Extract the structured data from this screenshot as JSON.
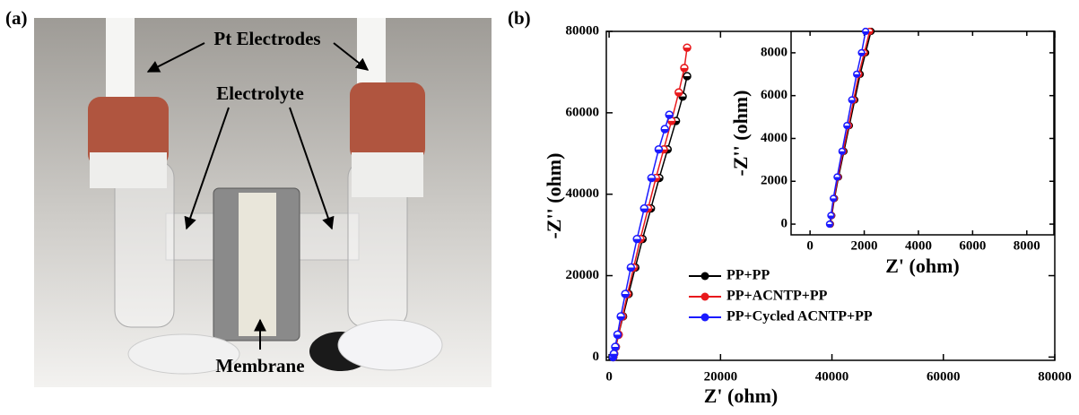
{
  "panel_labels": [
    "(a)",
    "(b)"
  ],
  "photo": {
    "annotations": [
      "Pt Electrodes",
      "Electrolyte",
      "Membrane"
    ]
  },
  "chart_data": [
    {
      "type": "scatter-line",
      "xlabel": "Z' (ohm)",
      "ylabel": "-Z'' (ohm)",
      "xlim": [
        -500,
        80000
      ],
      "ylim": [
        -800,
        80000
      ],
      "xticks": [
        0,
        20000,
        40000,
        60000,
        80000
      ],
      "yticks": [
        0,
        20000,
        40000,
        60000,
        80000
      ],
      "series": [
        {
          "name": "PP+PP",
          "color": "#000000",
          "x": [
            750,
            900,
            1200,
            1700,
            2500,
            3500,
            4700,
            6000,
            7500,
            9000,
            10500,
            12000,
            13200,
            14000
          ],
          "values": [
            0,
            800,
            2500,
            5500,
            10000,
            15500,
            22000,
            29000,
            36500,
            44000,
            51000,
            58000,
            64000,
            69000
          ]
        },
        {
          "name": "PP+ACNTP+PP",
          "color": "#e8191c",
          "x": [
            750,
            900,
            1200,
            1700,
            2400,
            3300,
            4400,
            5600,
            7000,
            8400,
            9800,
            11200,
            12500,
            13500,
            14000
          ],
          "values": [
            0,
            800,
            2500,
            5500,
            10000,
            15500,
            22000,
            29000,
            36500,
            44000,
            51000,
            58000,
            65000,
            71000,
            76000
          ]
        },
        {
          "name": "PP+Cycled ACNTP+PP",
          "color": "#1a1aff",
          "x": [
            700,
            850,
            1100,
            1500,
            2100,
            2900,
            3900,
            5000,
            6300,
            7600,
            8900,
            10000,
            10800
          ],
          "values": [
            0,
            800,
            2500,
            5500,
            10000,
            15500,
            22000,
            29000,
            36500,
            44000,
            51000,
            56000,
            59500
          ]
        }
      ]
    },
    {
      "type": "scatter-line",
      "xlabel": "Z' (ohm)",
      "ylabel": "-Z'' (ohm)",
      "xlim": [
        -700,
        9000
      ],
      "ylim": [
        -500,
        9000
      ],
      "xticks": [
        0,
        2000,
        4000,
        6000,
        8000
      ],
      "yticks": [
        0,
        2000,
        4000,
        6000,
        8000
      ],
      "series": [
        {
          "color": "#000000",
          "x": [
            750,
            800,
            900,
            1050,
            1250,
            1450,
            1650,
            1850,
            2050,
            2250
          ],
          "values": [
            0,
            400,
            1200,
            2200,
            3400,
            4600,
            5800,
            7000,
            8000,
            9000
          ]
        },
        {
          "color": "#e8191c",
          "x": [
            740,
            790,
            885,
            1030,
            1220,
            1420,
            1610,
            1800,
            2000,
            2200
          ],
          "values": [
            0,
            400,
            1200,
            2200,
            3400,
            4600,
            5800,
            7000,
            8000,
            9000
          ]
        },
        {
          "color": "#1a1aff",
          "x": [
            720,
            770,
            860,
            1000,
            1180,
            1360,
            1540,
            1720,
            1900,
            2050
          ],
          "values": [
            0,
            400,
            1200,
            2200,
            3400,
            4600,
            5800,
            7000,
            8000,
            9000
          ]
        }
      ]
    }
  ]
}
